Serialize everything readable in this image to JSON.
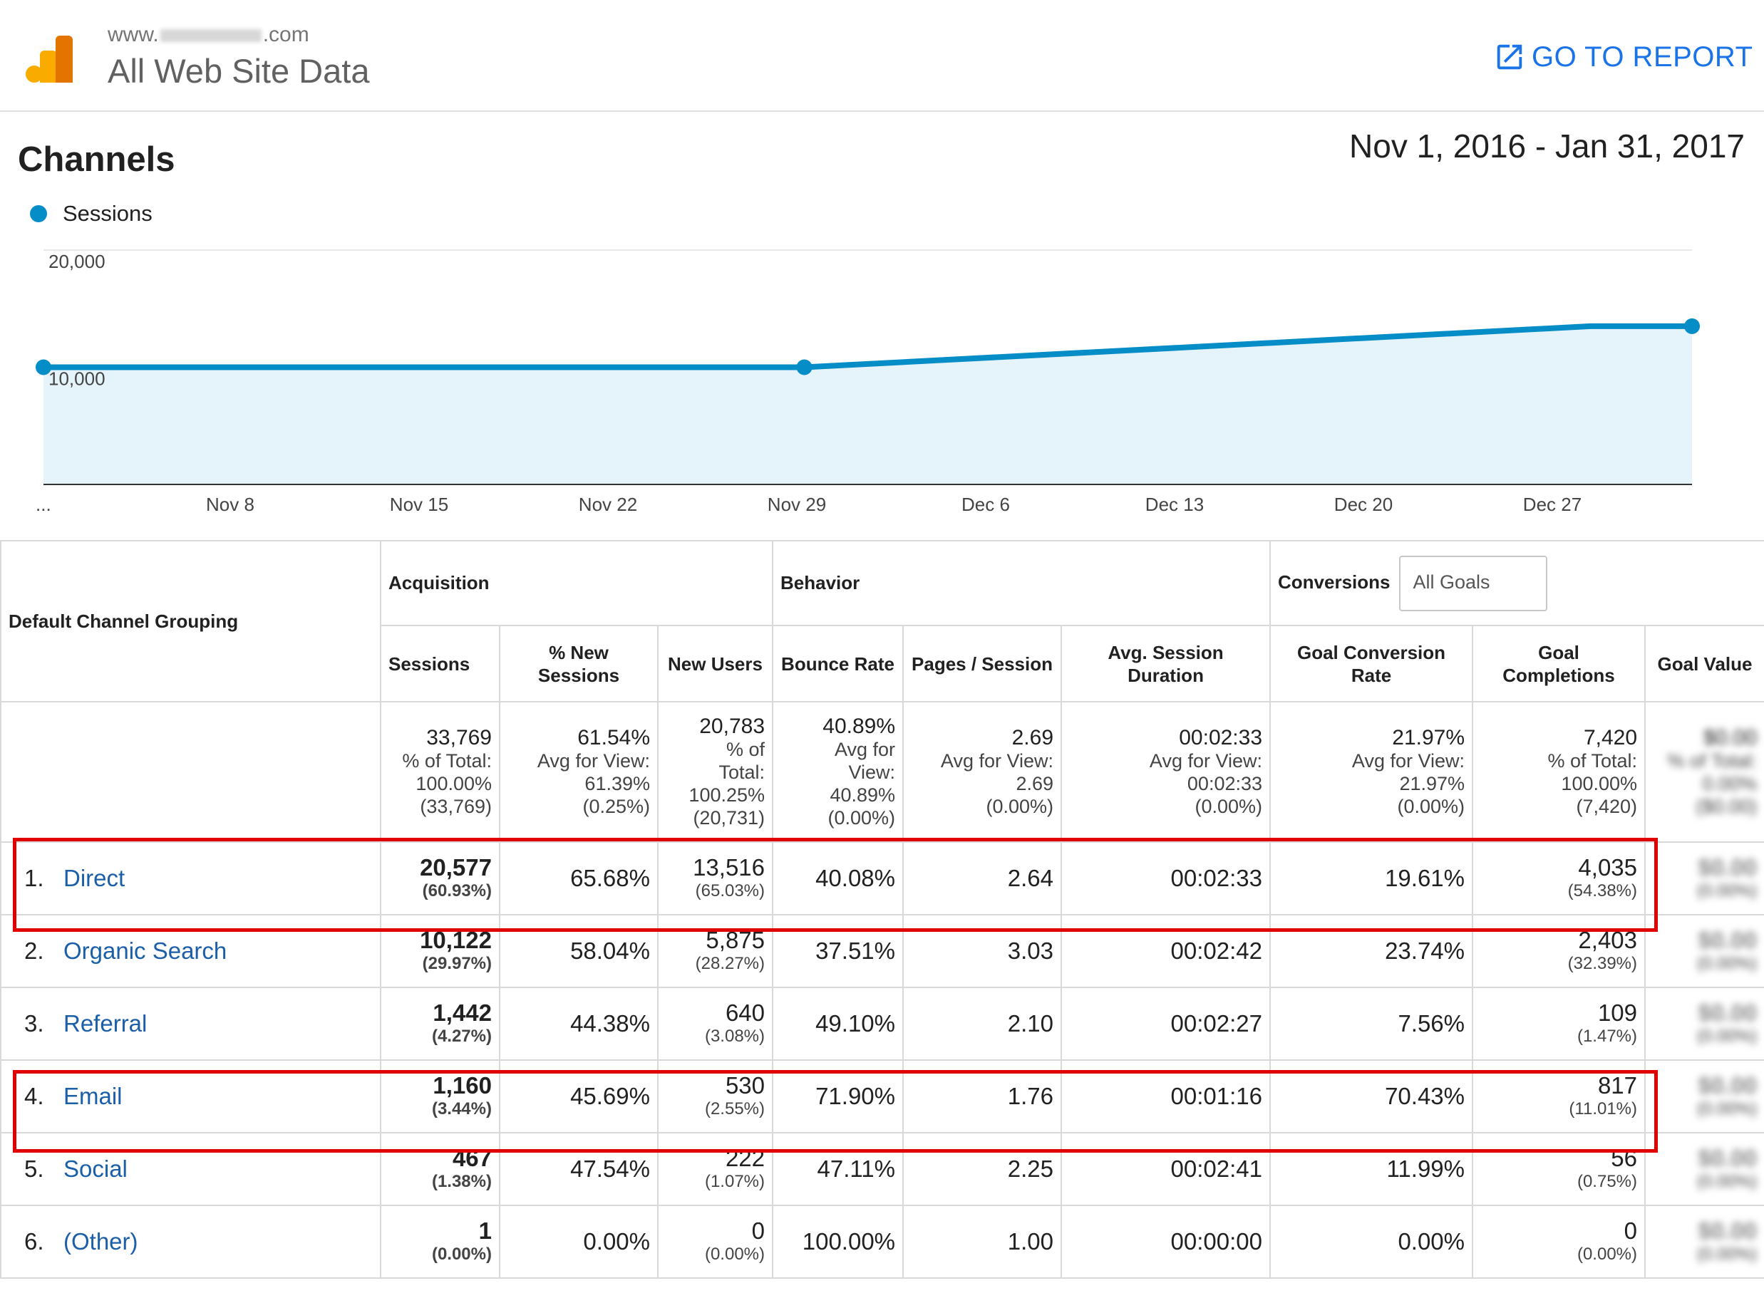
{
  "header": {
    "url_prefix": "www.",
    "url_suffix": ".com",
    "site_title": "All Web Site Data",
    "go_to_report": "GO TO REPORT"
  },
  "section_title": "Channels",
  "date_range": "Nov 1, 2016 - Jan 31, 2017",
  "colors": {
    "accent": "#058dc7",
    "fill": "#e5f3fb",
    "link": "#1a5fa8",
    "highlight": "#e10000",
    "report_link": "#1a73e8"
  },
  "chart_data": {
    "type": "area",
    "series": [
      {
        "name": "Sessions",
        "points": [
          {
            "x": "Nov 1",
            "y": 10000
          },
          {
            "x": "Dec 1",
            "y": 10000
          },
          {
            "x": "Jan 1",
            "y": 13500
          }
        ]
      }
    ],
    "y_ticks": [
      "20,000",
      "10,000"
    ],
    "x_ticks": [
      "...",
      "Nov 8",
      "Nov 15",
      "Nov 22",
      "Nov 29",
      "Dec 6",
      "Dec 13",
      "Dec 20",
      "Dec 27"
    ],
    "ylim": [
      0,
      20000
    ],
    "grid": true,
    "legend": "top-left"
  },
  "table": {
    "channel_header": "Default Channel Grouping",
    "groups": {
      "acquisition": "Acquisition",
      "behavior": "Behavior",
      "conversions": "Conversions",
      "goals_select": "All Goals"
    },
    "columns": [
      "Sessions",
      "% New Sessions",
      "New Users",
      "Bounce Rate",
      "Pages / Session",
      "Avg. Session Duration",
      "Goal Conversion Rate",
      "Goal Completions",
      "Goal Value"
    ],
    "totals": [
      [
        "33,769",
        "% of Total:",
        "100.00%",
        "(33,769)"
      ],
      [
        "61.54%",
        "Avg for View:",
        "61.39%",
        "(0.25%)"
      ],
      [
        "20,783",
        "% of",
        "Total:",
        "100.25%",
        "(20,731)"
      ],
      [
        "40.89%",
        "Avg for",
        "View:",
        "40.89%",
        "(0.00%)"
      ],
      [
        "2.69",
        "Avg for View:",
        "2.69",
        "(0.00%)"
      ],
      [
        "00:02:33",
        "Avg for View:",
        "00:02:33",
        "(0.00%)"
      ],
      [
        "21.97%",
        "Avg for View:",
        "21.97%",
        "(0.00%)"
      ],
      [
        "7,420",
        "% of Total:",
        "100.00%",
        "(7,420)"
      ],
      [
        "$0.00",
        "% of Total:",
        "0.00%",
        "($0.00)"
      ]
    ],
    "rows": [
      {
        "num": "1.",
        "channel": "Direct",
        "sessions": "20,577",
        "sessions_pct": "(60.93%)",
        "new_sessions": "65.68%",
        "new_users": "13,516",
        "new_users_pct": "(65.03%)",
        "bounce": "40.08%",
        "pages": "2.64",
        "duration": "00:02:33",
        "conv_rate": "19.61%",
        "completions": "4,035",
        "completions_pct": "(54.38%)",
        "value": "$0.00",
        "value_pct": "(0.00%)"
      },
      {
        "num": "2.",
        "channel": "Organic Search",
        "sessions": "10,122",
        "sessions_pct": "(29.97%)",
        "new_sessions": "58.04%",
        "new_users": "5,875",
        "new_users_pct": "(28.27%)",
        "bounce": "37.51%",
        "pages": "3.03",
        "duration": "00:02:42",
        "conv_rate": "23.74%",
        "completions": "2,403",
        "completions_pct": "(32.39%)",
        "value": "$0.00",
        "value_pct": "(0.00%)"
      },
      {
        "num": "3.",
        "channel": "Referral",
        "sessions": "1,442",
        "sessions_pct": "(4.27%)",
        "new_sessions": "44.38%",
        "new_users": "640",
        "new_users_pct": "(3.08%)",
        "bounce": "49.10%",
        "pages": "2.10",
        "duration": "00:02:27",
        "conv_rate": "7.56%",
        "completions": "109",
        "completions_pct": "(1.47%)",
        "value": "$0.00",
        "value_pct": "(0.00%)"
      },
      {
        "num": "4.",
        "channel": "Email",
        "sessions": "1,160",
        "sessions_pct": "(3.44%)",
        "new_sessions": "45.69%",
        "new_users": "530",
        "new_users_pct": "(2.55%)",
        "bounce": "71.90%",
        "pages": "1.76",
        "duration": "00:01:16",
        "conv_rate": "70.43%",
        "completions": "817",
        "completions_pct": "(11.01%)",
        "value": "$0.00",
        "value_pct": "(0.00%)"
      },
      {
        "num": "5.",
        "channel": "Social",
        "sessions": "467",
        "sessions_pct": "(1.38%)",
        "new_sessions": "47.54%",
        "new_users": "222",
        "new_users_pct": "(1.07%)",
        "bounce": "47.11%",
        "pages": "2.25",
        "duration": "00:02:41",
        "conv_rate": "11.99%",
        "completions": "56",
        "completions_pct": "(0.75%)",
        "value": "$0.00",
        "value_pct": "(0.00%)"
      },
      {
        "num": "6.",
        "channel": "(Other)",
        "sessions": "1",
        "sessions_pct": "(0.00%)",
        "new_sessions": "0.00%",
        "new_users": "0",
        "new_users_pct": "(0.00%)",
        "bounce": "100.00%",
        "pages": "1.00",
        "duration": "00:00:00",
        "conv_rate": "0.00%",
        "completions": "0",
        "completions_pct": "(0.00%)",
        "value": "$0.00",
        "value_pct": "(0.00%)"
      }
    ]
  }
}
